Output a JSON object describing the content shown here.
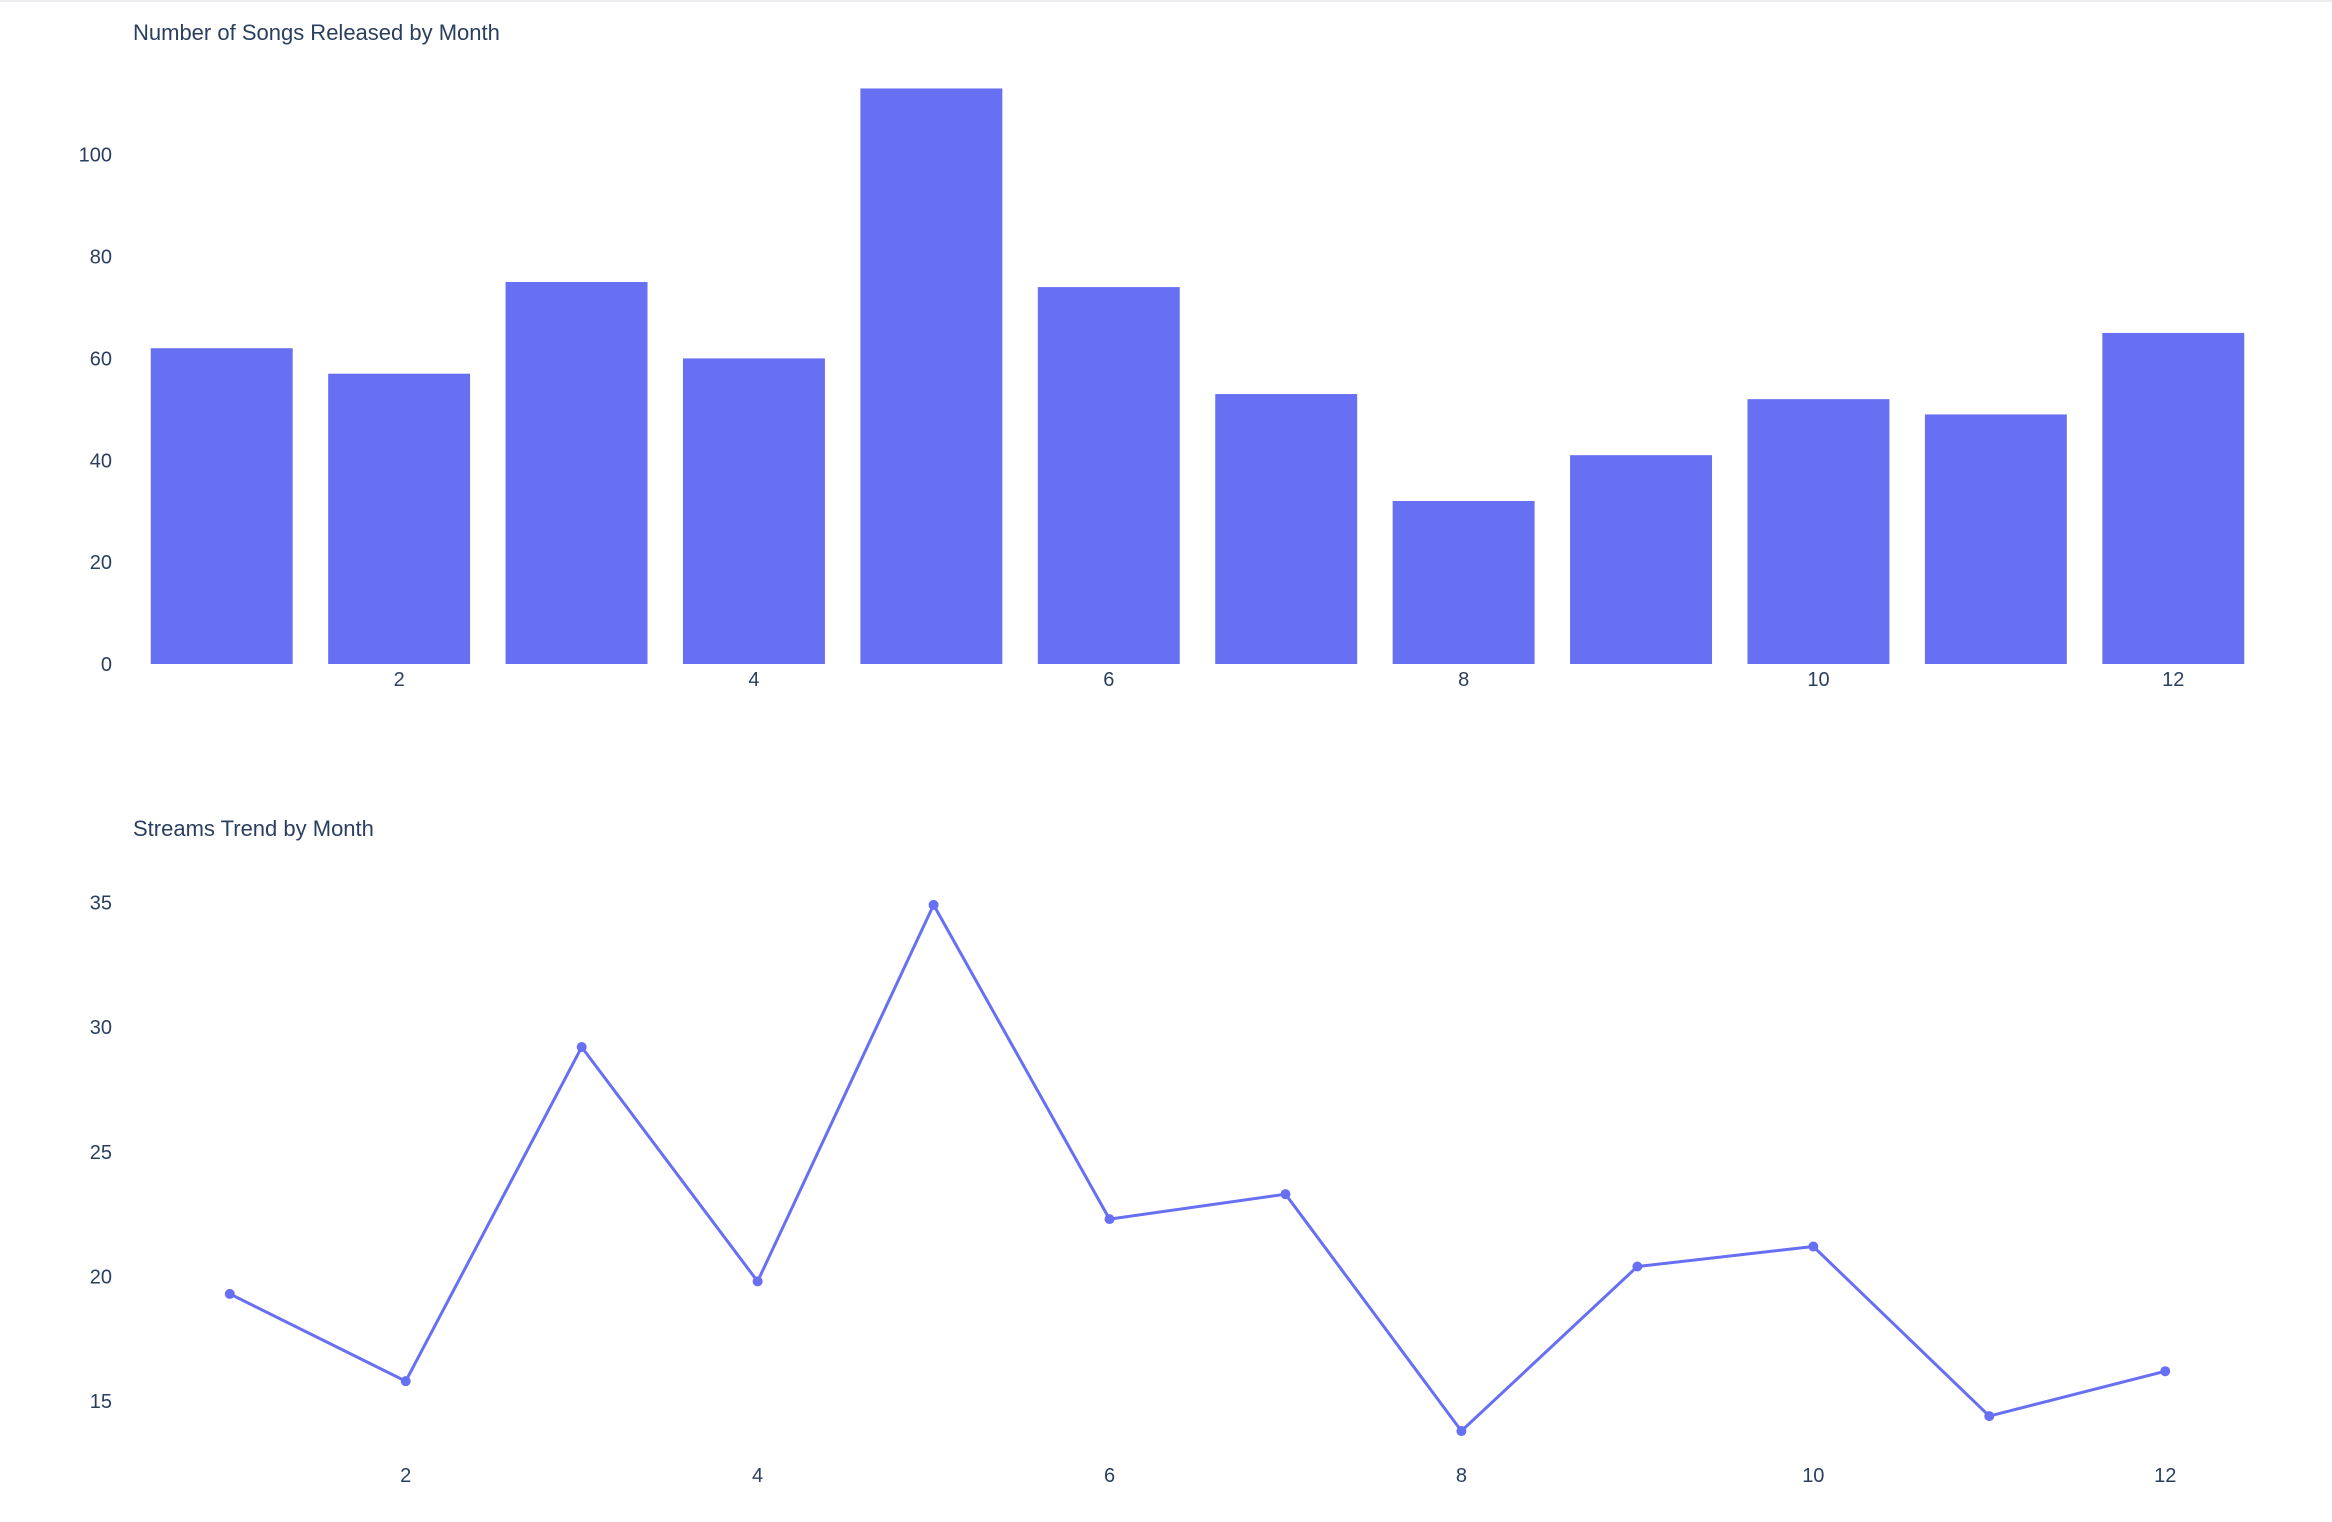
{
  "colors": {
    "series": "#676ff3",
    "text": "#2a3f5f",
    "background": "#ffffff"
  },
  "chart_data": [
    {
      "id": "songs",
      "type": "bar",
      "title": "Number of Songs Released by Month",
      "xlabel": "",
      "ylabel": "",
      "x": [
        1,
        2,
        3,
        4,
        5,
        6,
        7,
        8,
        9,
        10,
        11,
        12
      ],
      "values": [
        62,
        57,
        75,
        60,
        113,
        74,
        53,
        32,
        41,
        52,
        49,
        65
      ],
      "xticks": [
        2,
        4,
        6,
        8,
        10,
        12
      ],
      "yticks": [
        0,
        20,
        40,
        60,
        80,
        100
      ],
      "xlim": [
        0.5,
        12.5
      ],
      "ylim": [
        0,
        118
      ],
      "grid": false,
      "legend": false
    },
    {
      "id": "streams",
      "type": "line",
      "title": "Streams Trend by Month",
      "xlabel": "",
      "ylabel": "",
      "x": [
        1,
        2,
        3,
        4,
        5,
        6,
        7,
        8,
        9,
        10,
        11,
        12
      ],
      "values": [
        19.3,
        15.8,
        29.2,
        19.8,
        34.9,
        22.3,
        23.3,
        13.8,
        20.4,
        21.2,
        14.4,
        16.2
      ],
      "xticks": [
        2,
        4,
        6,
        8,
        10,
        12
      ],
      "yticks": [
        15,
        20,
        25,
        30,
        35
      ],
      "xlim": [
        0.45,
        12.55
      ],
      "ylim": [
        13.2,
        35.9
      ],
      "grid": false,
      "legend": false
    }
  ]
}
